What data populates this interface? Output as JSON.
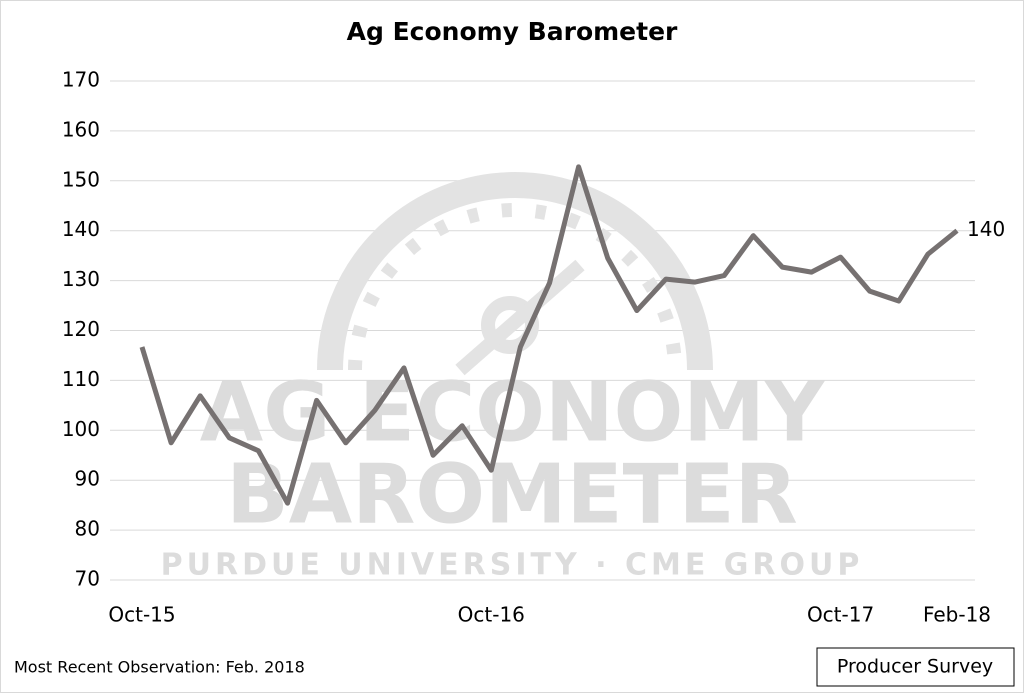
{
  "chart_data": {
    "type": "line",
    "title": "Ag Economy Barometer",
    "categories": [
      "Oct-15",
      null,
      null,
      null,
      null,
      null,
      null,
      null,
      null,
      null,
      null,
      null,
      "Oct-16",
      null,
      null,
      null,
      null,
      null,
      null,
      null,
      null,
      null,
      null,
      null,
      "Oct-17",
      null,
      null,
      null,
      "Feb-18"
    ],
    "series": [
      {
        "name": "Producer Survey",
        "color": "#767171",
        "values": [
          116.7,
          97.5,
          106.9,
          98.5,
          95.9,
          85.4,
          106,
          97.5,
          104,
          112.5,
          95,
          100.9,
          92,
          116.7,
          129.5,
          152.8,
          134.5,
          124,
          130.3,
          129.7,
          131,
          139,
          132.7,
          131.7,
          134.7,
          127.9,
          125.9,
          135.3,
          140
        ]
      }
    ],
    "ylim": [
      70,
      170
    ],
    "yticks": [
      70,
      80,
      90,
      100,
      110,
      120,
      130,
      140,
      150,
      160,
      170
    ],
    "grid": true,
    "note": "Most Recent Observation: Feb. 2018",
    "watermark": [
      "AG ECONOMY",
      "BAROMETER",
      "PURDUE UNIVERSITY · CME GROUP"
    ]
  }
}
